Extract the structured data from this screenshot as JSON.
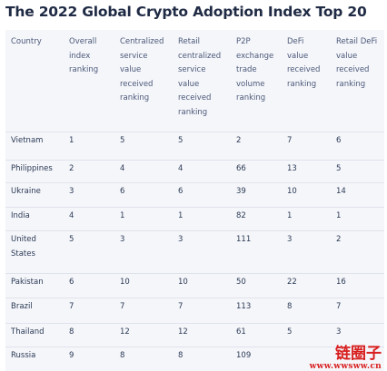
{
  "title": "The 2022 Global Crypto Adoption Index Top 20",
  "table": {
    "headers": [
      "Country",
      "Overall\nindex\nranking",
      "Centralized\nservice\nvalue\nreceived\nranking",
      "Retail\ncentralized\nservice\nvalue\nreceived\nranking",
      "P2P\nexchange\ntrade\nvolume\nranking",
      "DeFi\nvalue\nreceived\nranking",
      "Retail DeFi\nvalue\nreceived\nranking"
    ],
    "rows": [
      [
        "Vietnam",
        "1",
        "5",
        "5",
        "2",
        "7",
        "6"
      ],
      [
        "Philippines",
        "2",
        "4",
        "4",
        "66",
        "13",
        "5"
      ],
      [
        "Ukraine",
        "3",
        "6",
        "6",
        "39",
        "10",
        "14"
      ],
      [
        "India",
        "4",
        "1",
        "1",
        "82",
        "1",
        "1"
      ],
      [
        "United\nStates",
        "5",
        "3",
        "3",
        "111",
        "3",
        "2"
      ],
      [
        "Pakistan",
        "6",
        "10",
        "10",
        "50",
        "22",
        "16"
      ],
      [
        "Brazil",
        "7",
        "7",
        "7",
        "113",
        "8",
        "7"
      ],
      [
        "Thailand",
        "8",
        "12",
        "12",
        "61",
        "5",
        "3"
      ],
      [
        "Russia",
        "9",
        "8",
        "8",
        "109",
        "",
        ""
      ]
    ]
  },
  "watermark": {
    "brand": "链圈子",
    "url": "www.wwsww.cn"
  }
}
